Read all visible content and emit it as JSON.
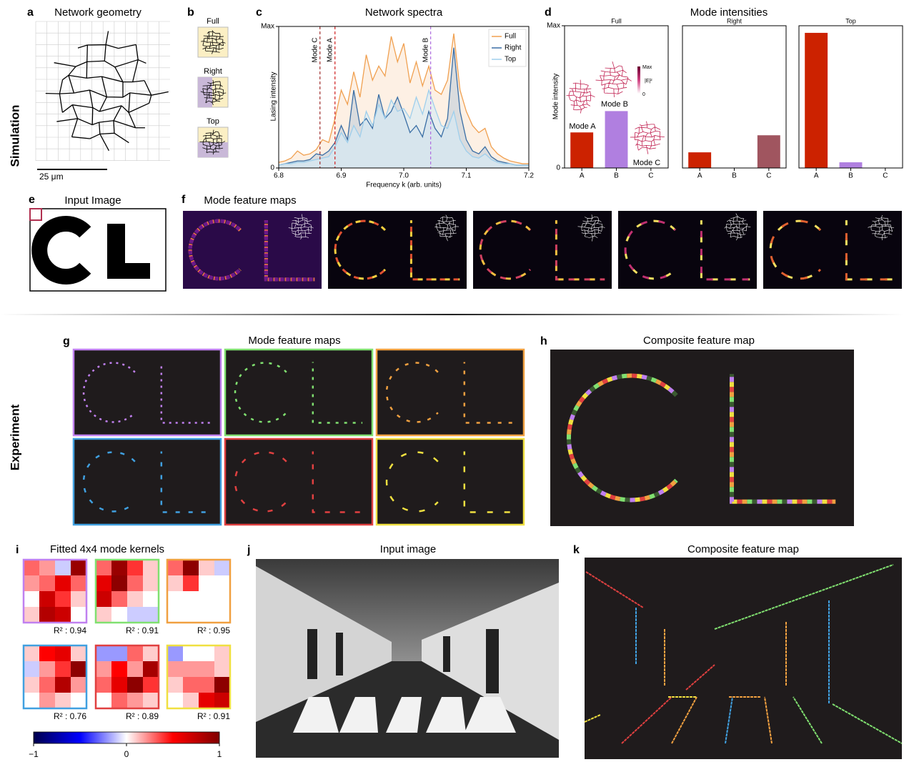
{
  "panels": {
    "a": {
      "letter": "a",
      "title": "Network geometry",
      "scale_bar": "25 μm"
    },
    "b": {
      "letter": "b",
      "labels": [
        "Full",
        "Right",
        "Top"
      ],
      "label_colors": [
        "#f0a860",
        "#3f7fc0",
        "#8ec8ee"
      ]
    },
    "c": {
      "letter": "c"
    },
    "d": {
      "letter": "d",
      "title": "Mode intensities",
      "colorbar_labels": [
        "Max",
        "|E|²",
        "0"
      ]
    },
    "e": {
      "letter": "e",
      "title": "Input Image"
    },
    "f": {
      "letter": "f",
      "title": "Mode feature maps"
    },
    "g": {
      "letter": "g",
      "title": "Mode feature maps"
    },
    "h": {
      "letter": "h",
      "title": "Composite feature map"
    },
    "i": {
      "letter": "i"
    },
    "j": {
      "letter": "j",
      "title": "Input image"
    },
    "k": {
      "letter": "k",
      "title": "Composite feature map"
    }
  },
  "row_labels": [
    "Simulation",
    "Experiment"
  ],
  "chart_data": [
    {
      "type": "line",
      "title": "Network spectra",
      "xlabel": "Frequency k (arb. units)",
      "ylabel": "Lasing intensity",
      "x": [
        6.8,
        6.81,
        6.82,
        6.83,
        6.84,
        6.85,
        6.86,
        6.87,
        6.88,
        6.89,
        6.9,
        6.91,
        6.92,
        6.93,
        6.94,
        6.95,
        6.96,
        6.97,
        6.98,
        6.99,
        7.0,
        7.01,
        7.02,
        7.03,
        7.04,
        7.05,
        7.06,
        7.07,
        7.08,
        7.09,
        7.1,
        7.11,
        7.12,
        7.13,
        7.14,
        7.15,
        7.16,
        7.17,
        7.18,
        7.19,
        7.2
      ],
      "series": [
        {
          "name": "Full",
          "color": "#f0a050",
          "values": [
            0.04,
            0.05,
            0.07,
            0.12,
            0.09,
            0.1,
            0.13,
            0.2,
            0.18,
            0.35,
            0.55,
            0.45,
            0.68,
            0.5,
            0.8,
            0.62,
            0.72,
            0.65,
            0.93,
            0.75,
            0.88,
            0.6,
            0.75,
            0.58,
            0.72,
            0.55,
            0.52,
            0.62,
            0.95,
            0.55,
            0.4,
            0.3,
            0.25,
            0.28,
            0.15,
            0.1,
            0.07,
            0.05,
            0.04,
            0.03,
            0.03
          ]
        },
        {
          "name": "Right",
          "color": "#3a6ea5",
          "values": [
            0.02,
            0.03,
            0.04,
            0.05,
            0.05,
            0.06,
            0.1,
            0.09,
            0.12,
            0.18,
            0.3,
            0.2,
            0.55,
            0.3,
            0.35,
            0.28,
            0.52,
            0.35,
            0.4,
            0.5,
            0.38,
            0.25,
            0.3,
            0.22,
            0.4,
            0.28,
            0.22,
            0.35,
            0.85,
            0.4,
            0.2,
            0.12,
            0.1,
            0.15,
            0.08,
            0.05,
            0.04,
            0.03,
            0.02,
            0.02,
            0.02
          ]
        },
        {
          "name": "Top",
          "color": "#9fcfec",
          "values": [
            0.02,
            0.03,
            0.03,
            0.04,
            0.04,
            0.05,
            0.06,
            0.07,
            0.08,
            0.15,
            0.25,
            0.18,
            0.3,
            0.22,
            0.4,
            0.3,
            0.45,
            0.35,
            0.48,
            0.4,
            0.42,
            0.35,
            0.5,
            0.38,
            0.55,
            0.42,
            0.3,
            0.28,
            0.4,
            0.2,
            0.12,
            0.08,
            0.07,
            0.1,
            0.06,
            0.04,
            0.03,
            0.03,
            0.02,
            0.02,
            0.02
          ]
        }
      ],
      "markers": [
        {
          "label": "Mode C",
          "x": 6.866,
          "color": "#a03030"
        },
        {
          "label": "Mode A",
          "x": 6.89,
          "color": "#d02020"
        },
        {
          "label": "Mode B",
          "x": 7.043,
          "color": "#b070e0"
        }
      ],
      "xlim": [
        6.8,
        7.2
      ],
      "xticks": [
        6.8,
        6.9,
        {
          "value": 7,
          "label": "7.0"
        },
        7.1,
        7.2
      ],
      "ylim": [
        0,
        1
      ],
      "yticks": [
        0,
        {
          "value": 1,
          "label": "Max"
        }
      ],
      "legend": "upper right"
    },
    {
      "type": "bar",
      "subtitle": "Full",
      "subtitle_color": "#f0a860",
      "ylabel": "Mode intensity",
      "categories": [
        "A",
        "B",
        "C"
      ],
      "values": [
        0.25,
        0.4,
        0
      ],
      "colors": [
        "#cc2200",
        "#b07fe0",
        "#a0555f"
      ],
      "ylim": [
        0,
        1
      ],
      "yticks": [
        0,
        {
          "value": 1,
          "label": "Max"
        }
      ],
      "annotations": [
        {
          "text": "Mode A",
          "color": "#d42a10"
        },
        {
          "text": "Mode B",
          "color": "#ffffff"
        },
        {
          "text": "Mode C",
          "color": "#a0555f"
        }
      ]
    },
    {
      "type": "bar",
      "subtitle": "Right",
      "subtitle_color": "#3f7fc0",
      "categories": [
        "A",
        "B",
        "C"
      ],
      "values": [
        0.11,
        0,
        0.23
      ],
      "colors": [
        "#cc2200",
        "#b07fe0",
        "#a0555f"
      ],
      "ylim": [
        0,
        1
      ]
    },
    {
      "type": "bar",
      "subtitle": "Top",
      "subtitle_color": "#8ec8ee",
      "categories": [
        "A",
        "B",
        "C"
      ],
      "values": [
        0.95,
        0.04,
        0
      ],
      "colors": [
        "#cc2200",
        "#b07fe0",
        "#a0555f"
      ],
      "ylim": [
        0,
        1
      ]
    },
    {
      "type": "heatmap",
      "title": "Fitted 4x4 mode kernels",
      "zlim": [
        -1,
        1
      ],
      "zticks": [
        {
          "value": -1,
          "label": "−1"
        },
        0,
        1
      ],
      "series": [
        {
          "color": "#c080f0",
          "annotation": "R² : 0.94",
          "values": [
            [
              0.3,
              0.2,
              -0.1,
              0.9
            ],
            [
              0.2,
              0.3,
              0.6,
              0.3
            ],
            [
              0.0,
              0.7,
              0.4,
              0.1
            ],
            [
              0.1,
              0.8,
              0.7,
              0.0
            ]
          ]
        },
        {
          "color": "#80e070",
          "annotation": "R² : 0.91",
          "values": [
            [
              0.3,
              0.9,
              0.4,
              0.1
            ],
            [
              0.6,
              0.95,
              0.3,
              0.1
            ],
            [
              0.7,
              0.3,
              0.1,
              0.0
            ],
            [
              0.1,
              0.0,
              -0.1,
              -0.1
            ]
          ]
        },
        {
          "color": "#f0a040",
          "annotation": "R² : 0.95",
          "values": [
            [
              0.3,
              0.95,
              0.1,
              -0.1
            ],
            [
              0.1,
              0.4,
              0.0,
              0.0
            ],
            [
              0.0,
              0.0,
              0.0,
              0.0
            ],
            [
              0.0,
              0.0,
              0.0,
              0.0
            ]
          ]
        },
        {
          "color": "#40a0e0",
          "annotation": "R² : 0.76",
          "values": [
            [
              0.1,
              0.5,
              0.6,
              0.1
            ],
            [
              -0.1,
              0.2,
              0.4,
              0.95
            ],
            [
              0.1,
              0.3,
              0.8,
              0.2
            ],
            [
              0.0,
              0.2,
              0.1,
              0.0
            ]
          ]
        },
        {
          "color": "#e04040",
          "annotation": "R² : 0.89",
          "values": [
            [
              -0.2,
              -0.2,
              0.3,
              0.1
            ],
            [
              0.2,
              0.5,
              0.2,
              0.85
            ],
            [
              0.3,
              0.6,
              0.95,
              0.4
            ],
            [
              0.0,
              0.3,
              0.2,
              0.1
            ]
          ]
        },
        {
          "color": "#f0e040",
          "annotation": "R² : 0.91",
          "values": [
            [
              -0.2,
              0.0,
              0.0,
              0.1
            ],
            [
              0.2,
              0.2,
              0.2,
              0.1
            ],
            [
              0.1,
              0.3,
              0.3,
              0.95
            ],
            [
              0.0,
              0.1,
              0.6,
              0.7
            ]
          ]
        }
      ]
    }
  ]
}
